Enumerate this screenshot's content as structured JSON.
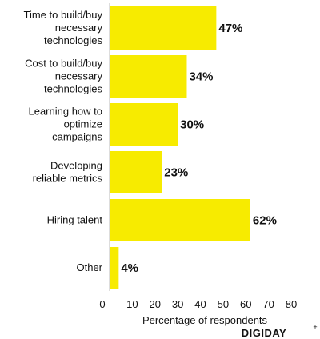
{
  "chart_data": {
    "type": "bar",
    "orientation": "horizontal",
    "categories": [
      "Time to build/buy necessary technologies",
      "Cost to build/buy necessary technologies",
      "Learning how to optimize campaigns",
      "Developing reliable metrics",
      "Hiring talent",
      "Other"
    ],
    "category_lines": [
      [
        "Time to build/buy",
        "necessary",
        "technologies"
      ],
      [
        "Cost to build/buy",
        "necessary",
        "technologies"
      ],
      [
        "Learning how to",
        "optimize",
        "campaigns"
      ],
      [
        "Developing",
        "reliable metrics"
      ],
      [
        "Hiring talent"
      ],
      [
        "Other"
      ]
    ],
    "values": [
      47,
      34,
      30,
      23,
      62,
      4
    ],
    "value_labels": [
      "47%",
      "34%",
      "30%",
      "23%",
      "62%",
      "4%"
    ],
    "xlabel": "Percentage of respondents",
    "xticks": [
      "0",
      "10",
      "20",
      "30",
      "40",
      "50",
      "60",
      "70",
      "80"
    ],
    "xlim": [
      0,
      80
    ],
    "grid": false,
    "bar_color": "#f7eb00"
  },
  "brand": {
    "name": "DIGIDAY",
    "mark": "+"
  }
}
